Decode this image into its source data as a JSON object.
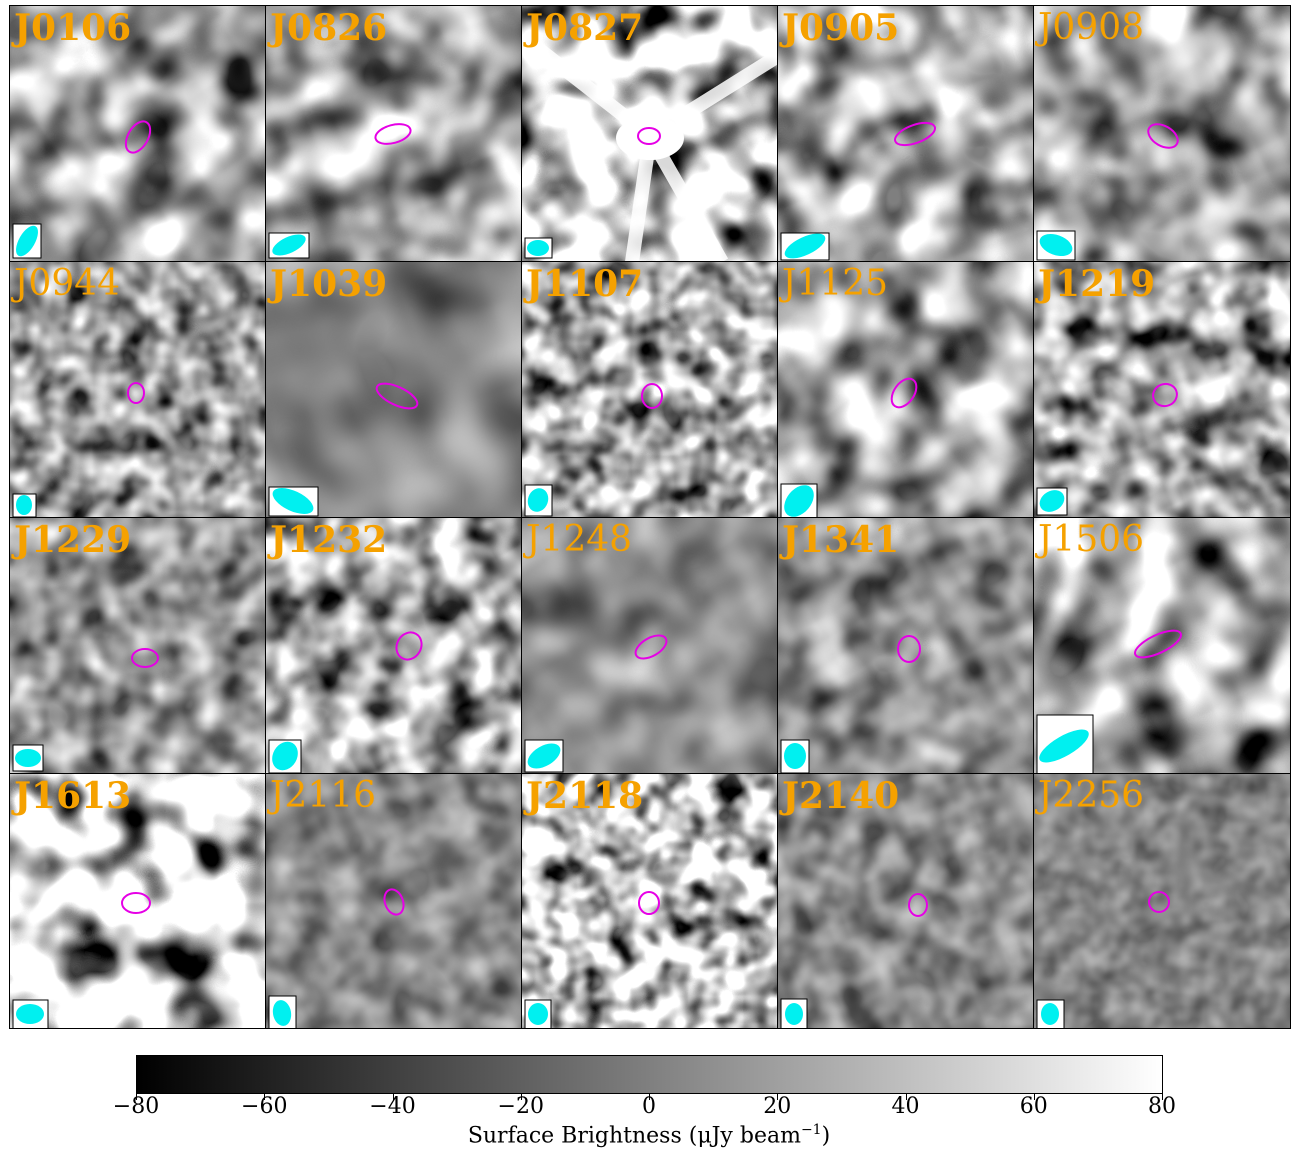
{
  "panels": [
    {
      "id": "J0106",
      "bold": true
    },
    {
      "id": "J0826",
      "bold": true
    },
    {
      "id": "J0827",
      "bold": true
    },
    {
      "id": "J0905",
      "bold": true
    },
    {
      "id": "J0908",
      "bold": false
    },
    {
      "id": "J0944",
      "bold": false
    },
    {
      "id": "J1039",
      "bold": true
    },
    {
      "id": "J1107",
      "bold": true
    },
    {
      "id": "J1125",
      "bold": false
    },
    {
      "id": "J1219",
      "bold": true
    },
    {
      "id": "J1229",
      "bold": true
    },
    {
      "id": "J1232",
      "bold": true
    },
    {
      "id": "J1248",
      "bold": false
    },
    {
      "id": "J1341",
      "bold": true
    },
    {
      "id": "J1506",
      "bold": false
    },
    {
      "id": "J1613",
      "bold": true
    },
    {
      "id": "J2116",
      "bold": false
    },
    {
      "id": "J2118",
      "bold": true
    },
    {
      "id": "J2140",
      "bold": true
    },
    {
      "id": "J2256",
      "bold": false
    }
  ],
  "colors": {
    "label": "#f5a100",
    "source_ellipse": "#e600e6",
    "beam": "#00f0f0"
  },
  "colorbar": {
    "min": -80,
    "max": 80,
    "ticks": [
      "−80",
      "−60",
      "−40",
      "−20",
      "0",
      "20",
      "40",
      "60",
      "80"
    ],
    "label_prefix": "Surface Brightness (μJy beam",
    "label_exp": "−1",
    "label_suffix": ")"
  }
}
